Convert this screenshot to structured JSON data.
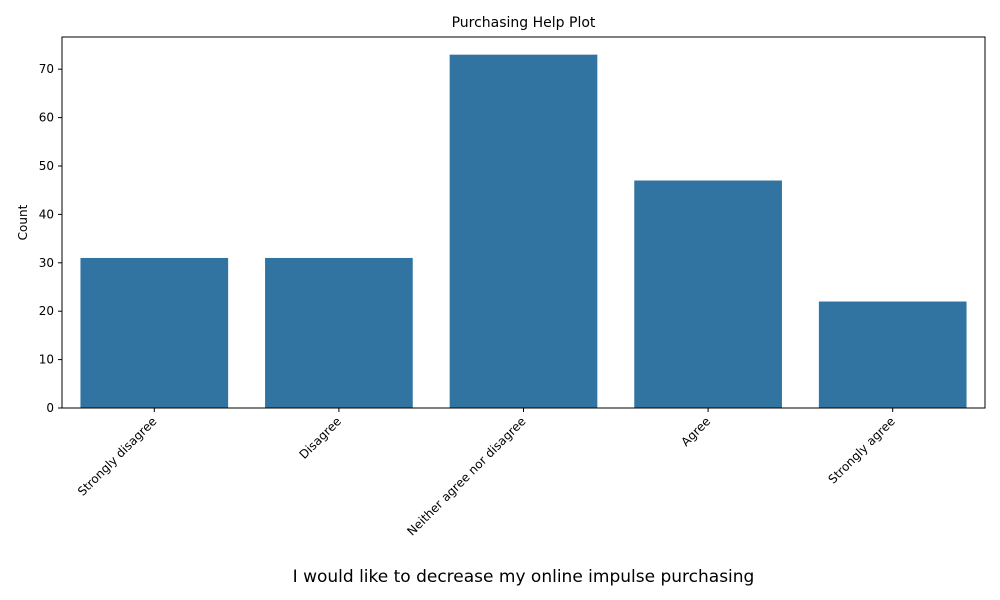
{
  "chart_data": {
    "type": "bar",
    "title": "Purchasing Help Plot",
    "xlabel": "I would like to decrease my online impulse purchasing",
    "ylabel": "Count",
    "categories": [
      "Strongly disagree",
      "Disagree",
      "Neither agree nor disagree",
      "Agree",
      "Strongly agree"
    ],
    "values": [
      31,
      31,
      73,
      47,
      22
    ],
    "ylim": [
      0,
      76.65
    ],
    "yticks": [
      0,
      10,
      20,
      30,
      40,
      50,
      60,
      70
    ],
    "bar_color": "#3274a1",
    "grid": false
  }
}
